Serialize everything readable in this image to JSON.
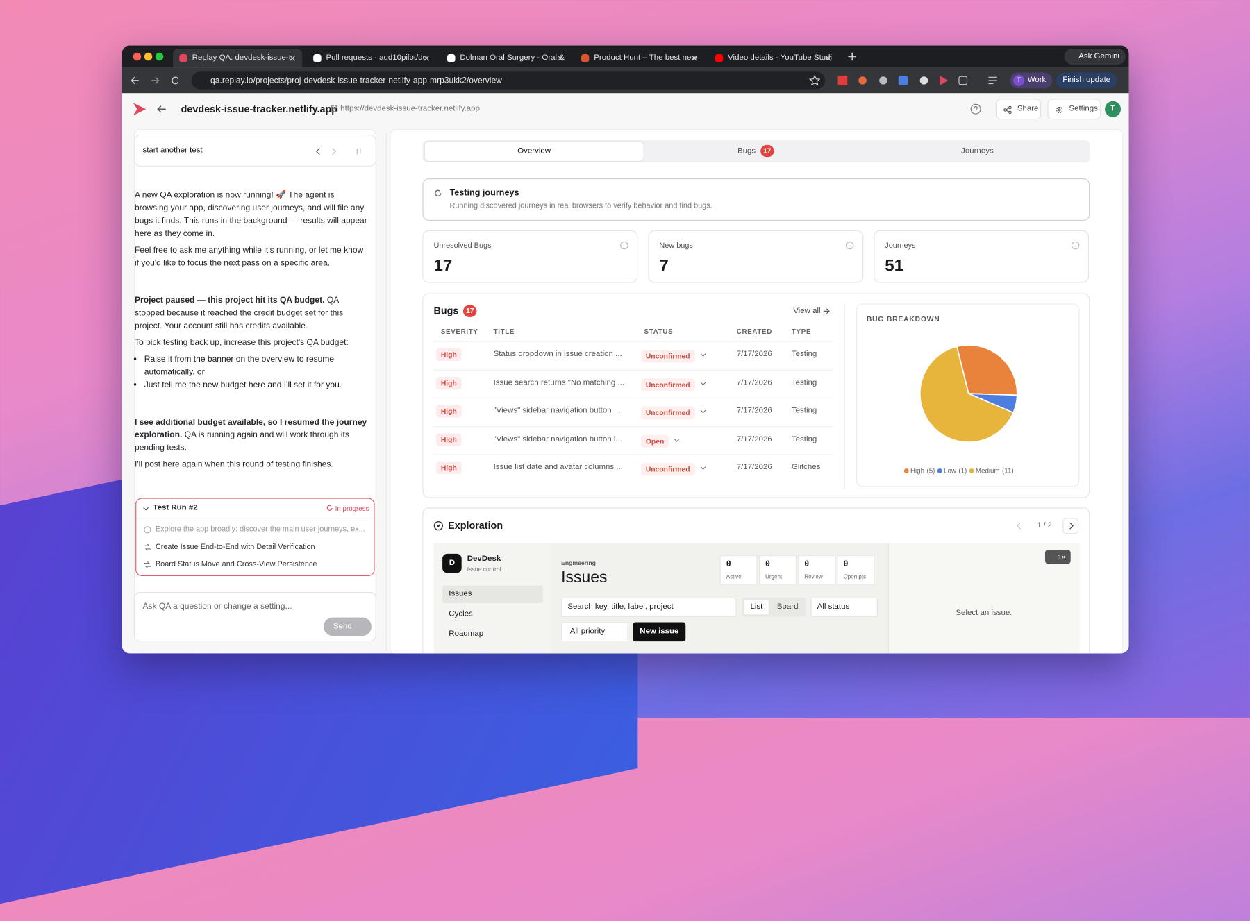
{
  "browser": {
    "tabs": [
      "Replay QA: devdesk-issue-tr",
      "Pull requests · aud10pilot/do",
      "Dolman Oral Surgery - Oral &",
      "Product Hunt – The best new",
      "Video details - YouTube Studi"
    ],
    "ask": "Ask Gemini",
    "url": "qa.replay.io/projects/proj-devdesk-issue-tracker-netlify-app-mrp3ukk2/overview",
    "profile_initial": "T",
    "profile": "Work",
    "update": "Finish update"
  },
  "header": {
    "site": "devdesk-issue-tracker.netlify.app",
    "link": "https://devdesk-issue-tracker.netlify.app",
    "share": "Share",
    "settings": "Settings",
    "avatar": "T"
  },
  "chat": {
    "title": "start another test",
    "message_1": [
      "A new QA exploration is now running! 🚀 The agent is browsing your app, discovering user journeys, and will file any bugs it finds. This runs in the background — results will appear here as they come in.",
      "Feel free to ask me anything while it's running, or let me know if you'd like to focus the next pass on a specific area."
    ],
    "message_2": {
      "lead": "Project paused — this project hit its QA budget.",
      "text": "QA stopped because it reached the credit budget set for this project. Your account still has credits available.",
      "prompt": "To pick testing back up, increase this project's QA budget:",
      "bullets": [
        "Raise it from the banner on the overview to resume automatically, or",
        "Just tell me the new budget here and I'll set it for you."
      ]
    },
    "message_3": {
      "lead": "I see additional budget available, so I resumed the journey exploration.",
      "text": "QA is running again and will work through its pending tests.",
      "closing": "I'll post here again when this round of testing finishes."
    },
    "test_run": {
      "title": "Test Run #2",
      "status": "In progress",
      "items": [
        "Explore the app broadly: discover the main user journeys, ex...",
        "Create Issue End-to-End with Detail Verification",
        "Board Status Move and Cross-View Persistence"
      ]
    },
    "input_placeholder": "Ask QA a question or change a setting...",
    "send": "Send"
  },
  "tabs": [
    {
      "label": "Overview"
    },
    {
      "label": "Bugs",
      "badge": 17
    },
    {
      "label": "Journeys"
    }
  ],
  "banner": {
    "title": "Testing journeys",
    "text": "Running discovered journeys in real browsers to verify behavior and find bugs."
  },
  "stats": [
    {
      "label": "Unresolved Bugs",
      "value": 17
    },
    {
      "label": "New bugs",
      "value": 7
    },
    {
      "label": "Journeys",
      "value": 51
    }
  ],
  "bugs": {
    "title": "Bugs",
    "count": 17,
    "view_all": "View all",
    "columns": [
      "SEVERITY",
      "TITLE",
      "STATUS",
      "CREATED",
      "TYPE"
    ],
    "rows": [
      [
        "High",
        "Status dropdown in issue creation ...",
        "Unconfirmed",
        "7/17/2026",
        "Testing"
      ],
      [
        "High",
        "Issue search returns \"No matching ...",
        "Unconfirmed",
        "7/17/2026",
        "Testing"
      ],
      [
        "High",
        "\"Views\" sidebar navigation button ...",
        "Unconfirmed",
        "7/17/2026",
        "Testing"
      ],
      [
        "High",
        "\"Views\" sidebar navigation button i...",
        "Open",
        "7/17/2026",
        "Testing"
      ],
      [
        "High",
        "Issue list date and avatar columns ...",
        "Unconfirmed",
        "7/17/2026",
        "Glitches"
      ]
    ]
  },
  "chart_data": {
    "type": "pie",
    "title": "BUG BREAKDOWN",
    "categories": [
      "High",
      "Low",
      "Medium"
    ],
    "values": [
      5,
      1,
      11
    ],
    "value_labels": [
      "(5)",
      "(1)",
      "(11)"
    ],
    "colors": [
      "#e9823a",
      "#4b7ee0",
      "#e7b43c"
    ]
  },
  "exploration": {
    "title": "Exploration",
    "pager": "1 / 2",
    "app": {
      "logo": "D",
      "brand": "DevDesk",
      "subtitle": "Issue control",
      "nav": [
        "Issues",
        "Cycles",
        "Roadmap"
      ],
      "crumb": "Engineering",
      "heading": "Issues",
      "counters": [
        {
          "value": 0,
          "label": "Active"
        },
        {
          "value": 0,
          "label": "Urgent"
        },
        {
          "value": 0,
          "label": "Review"
        },
        {
          "value": 0,
          "label": "Open pts"
        }
      ],
      "search": "Search key, title, label, project",
      "views": [
        "List",
        "Board"
      ],
      "status_filter": "All status",
      "priority_filter": "All priority",
      "new_issue": "New issue",
      "empty": "Select an issue.",
      "speed": "1×"
    }
  }
}
